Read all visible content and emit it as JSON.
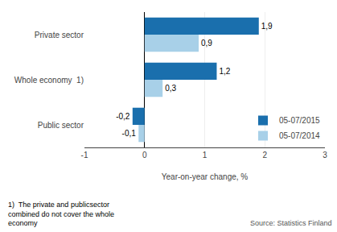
{
  "chart_data": {
    "type": "bar",
    "orientation": "horizontal",
    "categories": [
      "Public sector",
      "Whole economy  1)",
      "Private sector"
    ],
    "series": [
      {
        "name": "05-07/2015",
        "color": "#1a6fad",
        "values": [
          -0.2,
          1.2,
          1.9
        ],
        "value_labels": [
          "-0,2",
          "1,2",
          "1,9"
        ]
      },
      {
        "name": "05-07/2014",
        "color": "#a8d0e8",
        "values": [
          -0.1,
          0.3,
          0.9
        ],
        "value_labels": [
          "-0,1",
          "0,3",
          "0,9"
        ]
      }
    ],
    "xlim": [
      -1,
      3
    ],
    "xticks": [
      -1,
      0,
      1,
      2,
      3
    ],
    "xlabel": "Year-on-year change, %",
    "grid": true,
    "legend": "lower right",
    "data_labels": true,
    "footnote": "1)  The private and publicsector\ncombined do not cover the whole\neconomy",
    "source": "Source: Statistics Finland"
  }
}
